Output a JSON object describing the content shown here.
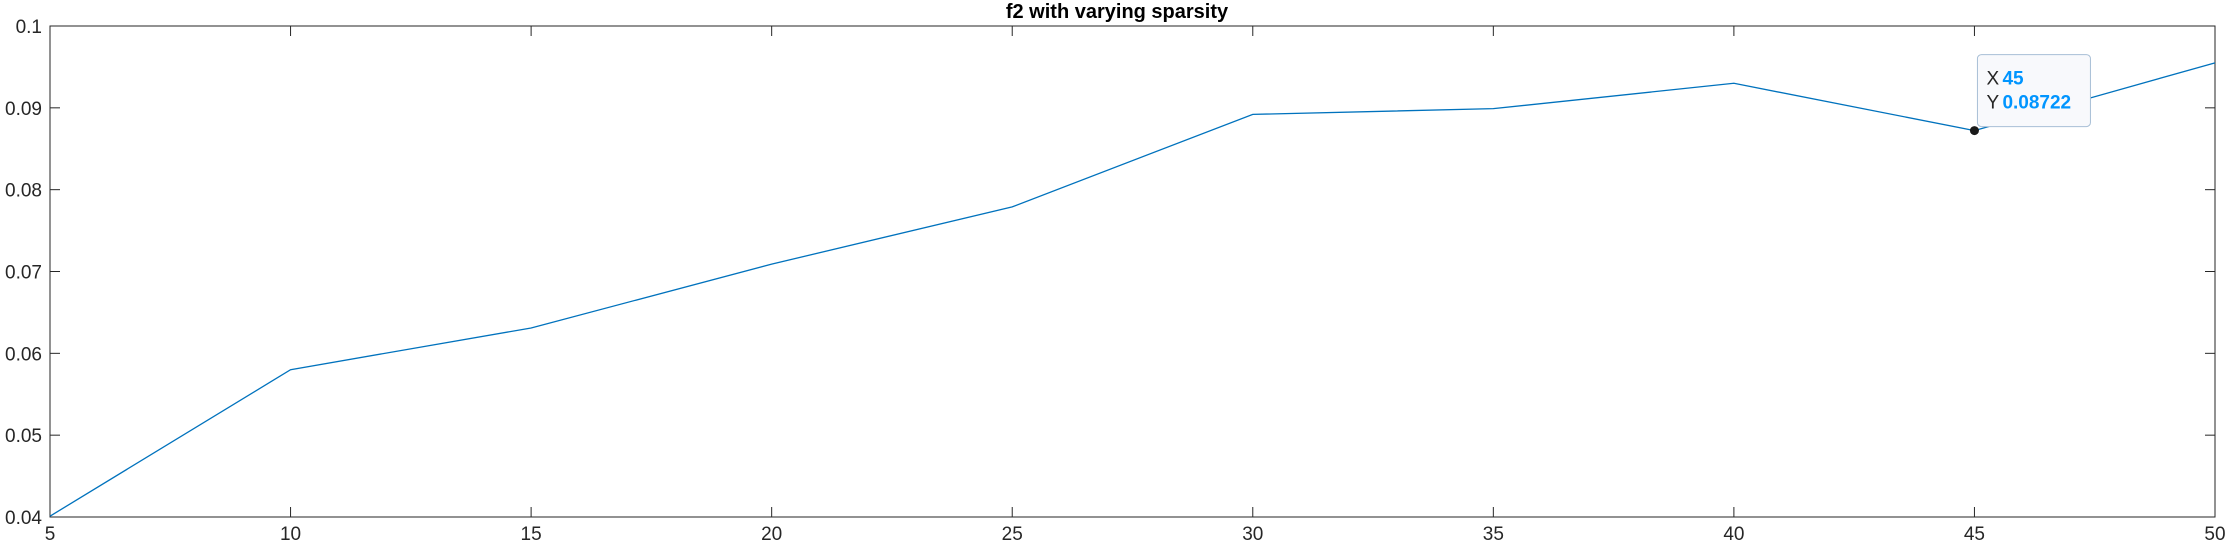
{
  "chart_data": {
    "type": "line",
    "title": "f2 with varying sparsity",
    "xlabel": "",
    "ylabel": "",
    "xlim": [
      5,
      50
    ],
    "ylim": [
      0.04,
      0.1
    ],
    "xticks": [
      5,
      10,
      15,
      20,
      25,
      30,
      35,
      40,
      45,
      50
    ],
    "yticks": [
      0.04,
      0.05,
      0.06,
      0.07,
      0.08,
      0.09,
      0.1
    ],
    "xtick_labels": [
      "5",
      "10",
      "15",
      "20",
      "25",
      "30",
      "35",
      "40",
      "45",
      "50"
    ],
    "ytick_labels": [
      "0.04",
      "0.05",
      "0.06",
      "0.07",
      "0.08",
      "0.09",
      "0.1"
    ],
    "grid": false,
    "series": [
      {
        "x": [
          5,
          10,
          15,
          20,
          25,
          30,
          35,
          40,
          45,
          50
        ],
        "y": [
          0.0401,
          0.058,
          0.0631,
          0.0709,
          0.0779,
          0.0892,
          0.0899,
          0.093,
          0.08722,
          0.0955
        ]
      }
    ],
    "datatip": {
      "x_key": "X",
      "x_value": "45",
      "y_key": "Y",
      "y_value": "0.08722",
      "at": [
        45,
        0.08722
      ]
    }
  },
  "colors": {
    "line": "#0072BD",
    "axes": "#262626",
    "datatip_value": "#0095ff",
    "datatip_border": "#a8bfd6",
    "datatip_bg": "#f8f9fc",
    "marker": "#1a1a1a"
  }
}
